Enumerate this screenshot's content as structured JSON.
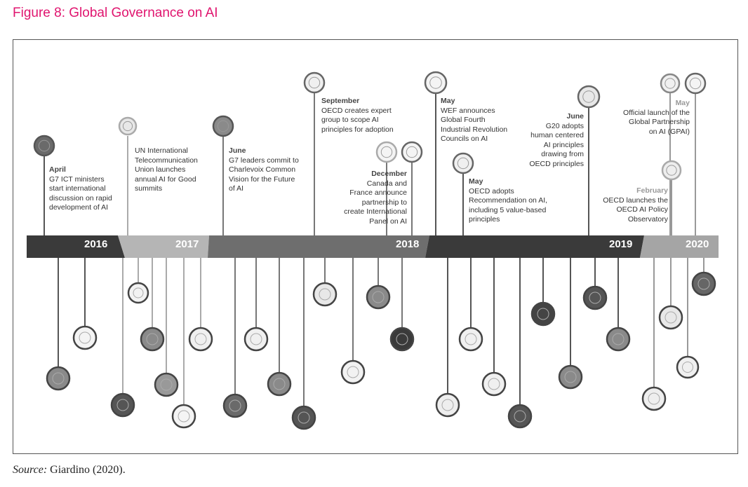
{
  "title": "Figure 8: Global Governance on AI",
  "source_label": "Source:",
  "source_text": " Giardino (2020).",
  "years": [
    "2016",
    "2017",
    "2018",
    "2019",
    "2020"
  ],
  "events": [
    {
      "month": "April",
      "text": "G7 ICT ministers\nstart international\ndiscussion on rapid\ndevelopment of AI"
    },
    {
      "month": "",
      "text": "UN International\nTelecommunication\nUnion launches\nannual AI for Good\nsummits"
    },
    {
      "month": "June",
      "text": "G7 leaders commit to\nCharlevoix Common\nVision for the Future\nof AI"
    },
    {
      "month": "September",
      "text": "OECD creates expert\ngroup to scope AI\nprinciples for adoption"
    },
    {
      "month": "December",
      "text": "Canada and\nFrance announce\npartnership to\ncreate International\nPanel on AI"
    },
    {
      "month": "May",
      "text": "WEF announces\nGlobal Fourth\nIndustrial Revolution\nCouncils on AI"
    },
    {
      "month": "May",
      "text": "OECD adopts\nRecommendation on AI,\nincluding 5 value-based\nprinciples"
    },
    {
      "month": "June",
      "text": "G20 adopts\nhuman centered\nAI principles\ndrawing from\nOECD principles"
    },
    {
      "month": "May",
      "text": "Official launch of the\nGlobal Partnership\non AI (GPAI)"
    },
    {
      "month": "February",
      "text": "OECD launches the\nOECD AI Policy\nObservatory"
    }
  ],
  "icons": {
    "above": [
      "g7-logo",
      "itu-logo",
      "g7-logo",
      "oecd-logo",
      "canada-flag",
      "france-flag",
      "wef-logo",
      "oecd-logo",
      "g20-logo",
      "oecd-logo",
      "oecd-logo",
      "france-flag"
    ],
    "below": [
      "uk-flag",
      "korea-flag",
      "uk-flag",
      "japan-flag",
      "canada-flag",
      "uk-flag",
      "china-flag",
      "argentina-flag",
      "france-flag",
      "brazil-flag",
      "france-flag",
      "uk-flag",
      "country-flag",
      "austria-flag",
      "japan-flag",
      "hong-kong-flag",
      "germany-flag",
      "russia-flag",
      "uae-flag",
      "italy-flag",
      "new-zealand-flag",
      "country-flag",
      "uk-flag",
      "country-flag",
      "uk-flag",
      "indonesia-flag",
      "russia-flag",
      "country-flag",
      "mexico-flag",
      "country-flag"
    ]
  },
  "colors": {
    "title": "#e0156f",
    "band_dark": "#3a3a3a",
    "band_mid": "#8a8a8a",
    "band_light": "#b5b5b5"
  }
}
